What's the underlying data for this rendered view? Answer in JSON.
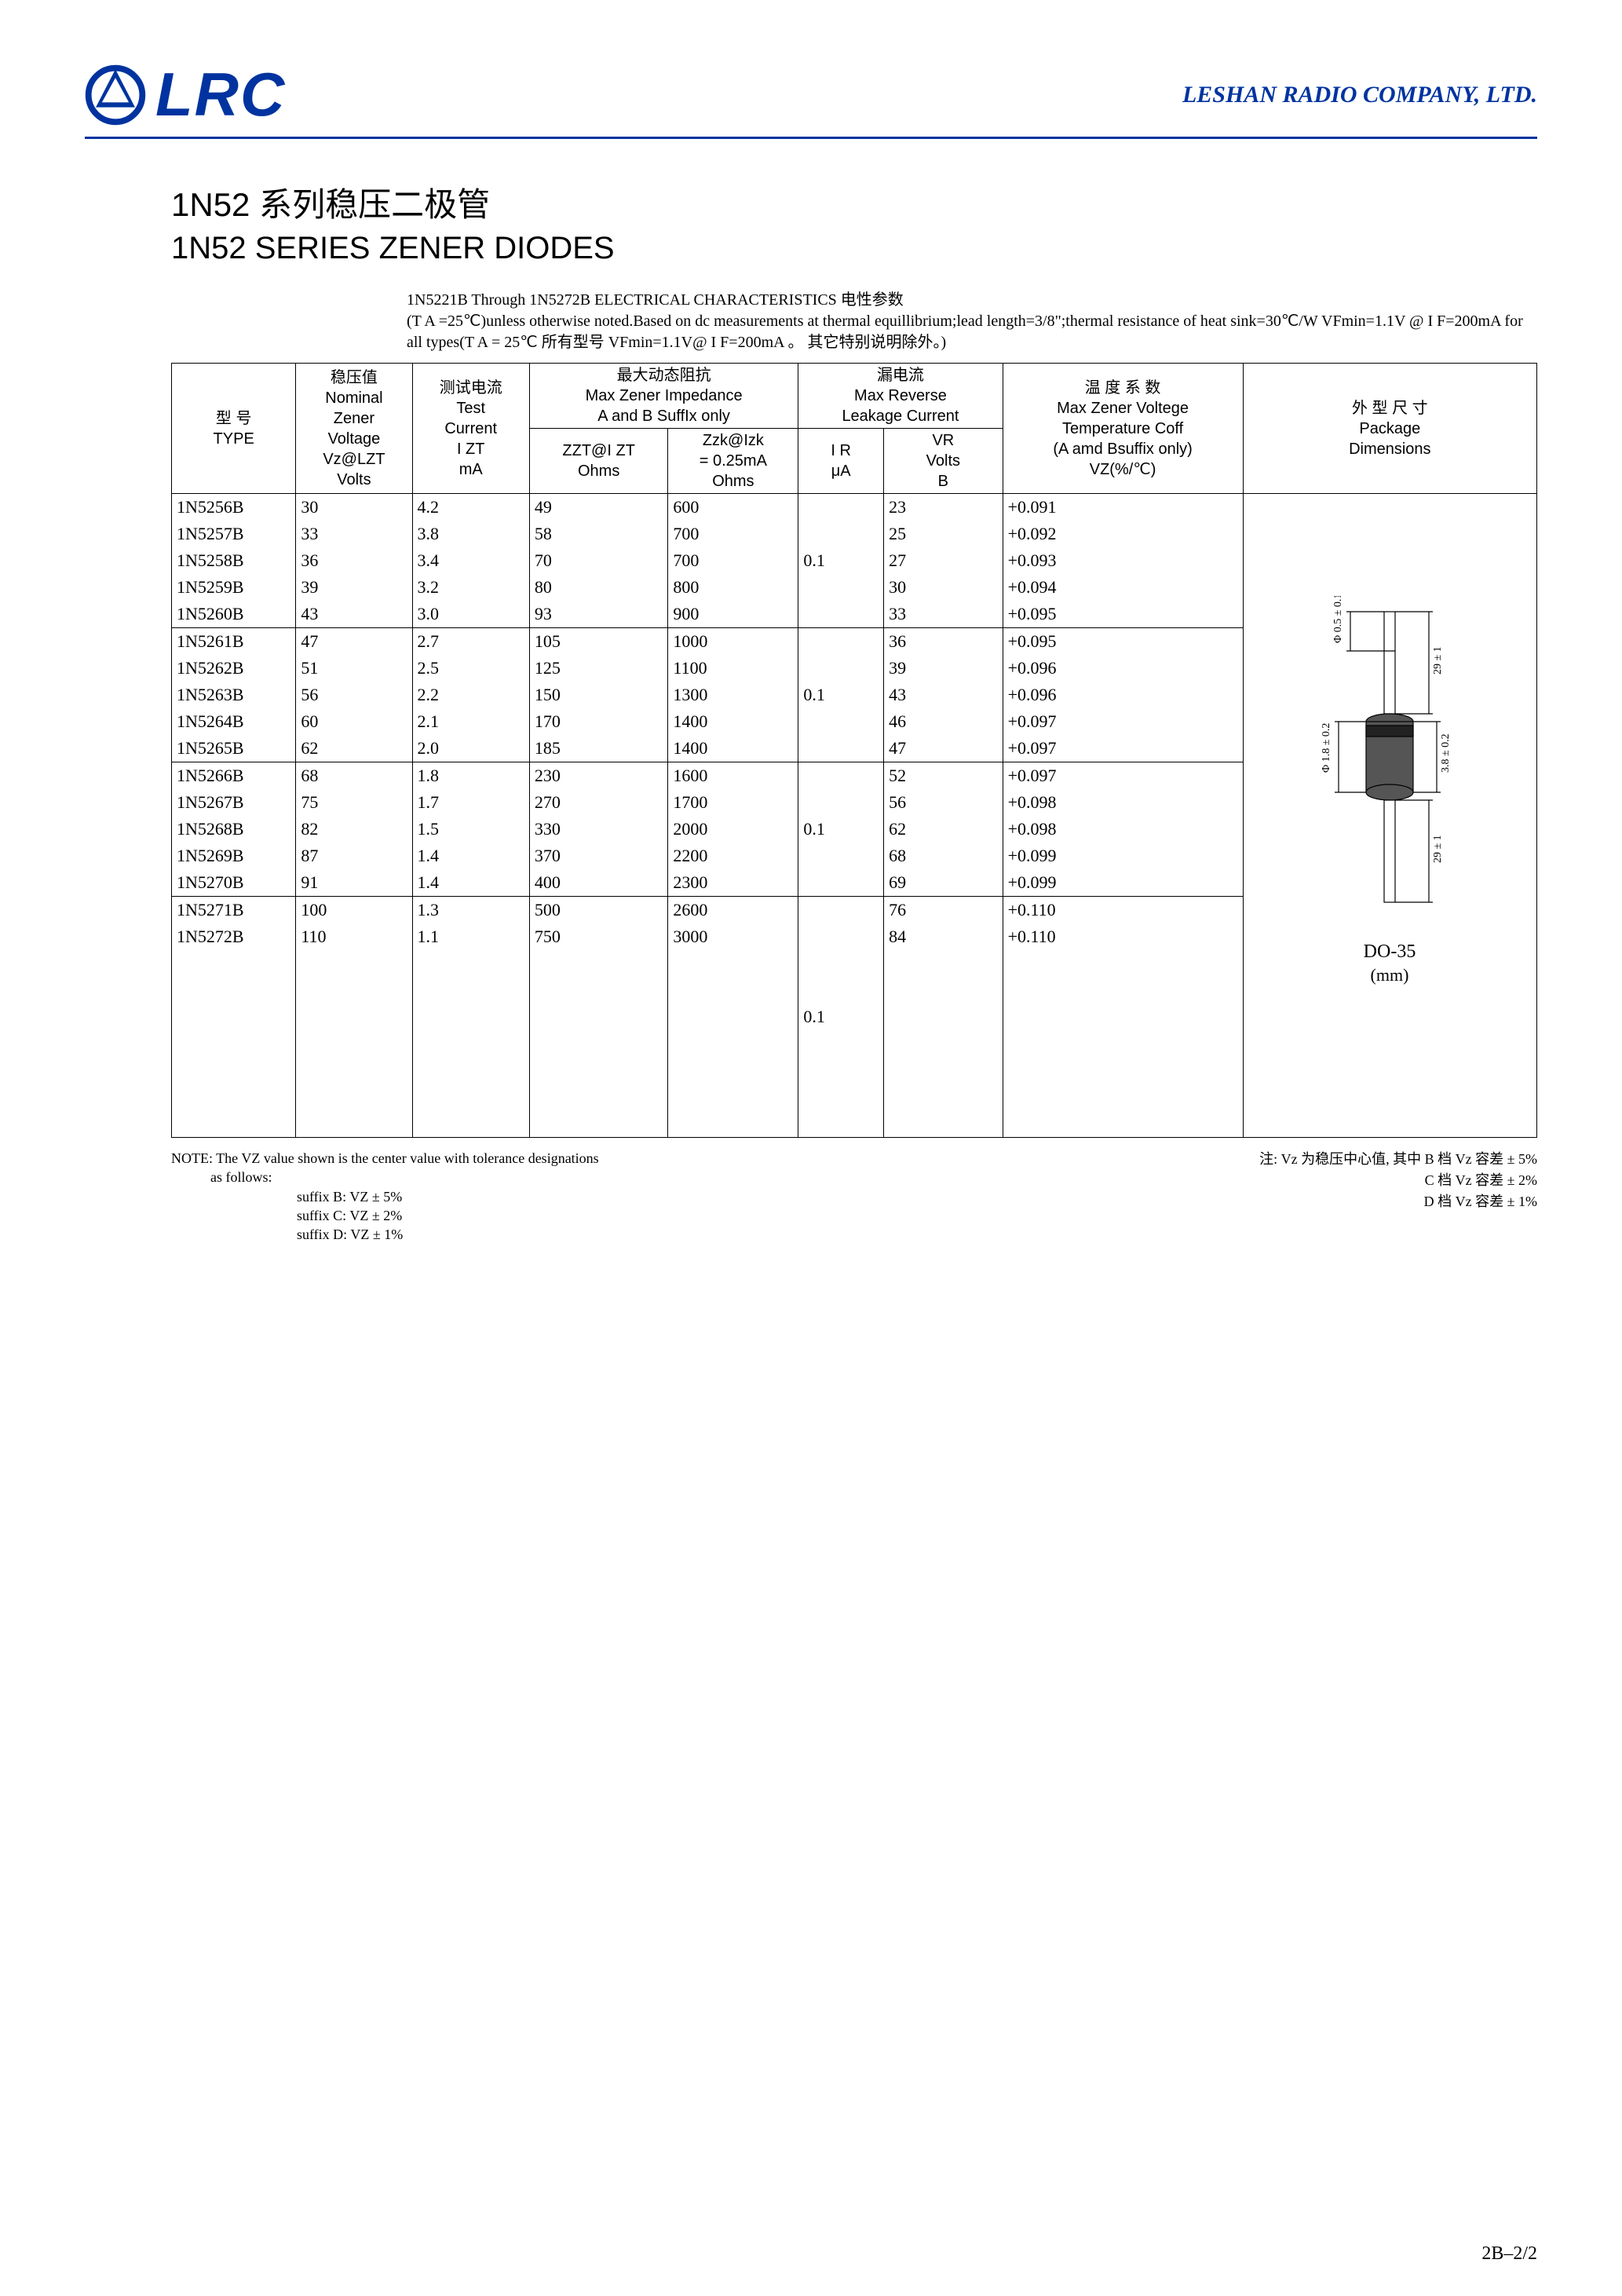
{
  "header": {
    "logo_text": "LRC",
    "company": "LESHAN RADIO COMPANY, LTD."
  },
  "titles": {
    "cn": "1N52 系列稳压二极管",
    "en": "1N52 SERIES ZENER DIODES"
  },
  "subtitle": {
    "line1": "1N5221B Through 1N5272B ELECTRICAL CHARACTERISTICS 电性参数",
    "line2": "(T A =25℃)unless otherwise noted.Based on dc measurements at thermal equillibrium;lead length=3/8\";thermal resistance of heat sink=30℃/W  VFmin=1.1V @ I F=200mA for all types(T A = 25℃ 所有型号 VFmin=1.1V@ I F=200mA 。 其它特别说明除外。)"
  },
  "table": {
    "headers": {
      "type_cn": "型   号",
      "type_en": "TYPE",
      "vz_cn": "稳压值",
      "vz_en1": "Nominal",
      "vz_en2": "Zener",
      "vz_en3": "Voltage",
      "vz_sym": "Vz@LZT",
      "vz_unit": "Volts",
      "izt_cn": "测试电流",
      "izt_en1": "Test",
      "izt_en2": "Current",
      "izt_sym": "I ZT",
      "izt_unit": "mA",
      "z_cn": "最大动态阻抗",
      "z_en1": "Max Zener Impedance",
      "z_en2": "A and B SuffIx only",
      "zzt_sym": "ZZT@I ZT",
      "zzt_unit": "Ohms",
      "zzk_sym": "Zzk@Izk",
      "zzk_eq": "= 0.25mA",
      "zzk_unit": "Ohms",
      "ir_cn": "漏电流",
      "ir_en1": "Max Reverse",
      "ir_en2": "Leakage Current",
      "ir_sym": "I R",
      "ir_unit": "μA",
      "vr_sym": "VR",
      "vr_unit1": "Volts",
      "vr_unit2": "B",
      "tc_cn": "温 度 系 数",
      "tc_en1": "Max Zener Voltege",
      "tc_en2": "Temperature Coff",
      "tc_en3": "(A amd Bsuffix only)",
      "tc_sym": "VZ(%/℃)",
      "pkg_cn": "外 型 尺 寸",
      "pkg_en1": "Package",
      "pkg_en2": "Dimensions"
    },
    "groups": [
      {
        "ir": "0.1",
        "rows": [
          {
            "type": "1N5256B",
            "vz": "30",
            "izt": "4.2",
            "zzt": "49",
            "zzk": "600",
            "vr": "23",
            "tc": "+0.091"
          },
          {
            "type": "1N5257B",
            "vz": "33",
            "izt": "3.8",
            "zzt": "58",
            "zzk": "700",
            "vr": "25",
            "tc": "+0.092"
          },
          {
            "type": "1N5258B",
            "vz": "36",
            "izt": "3.4",
            "zzt": "70",
            "zzk": "700",
            "vr": "27",
            "tc": "+0.093"
          },
          {
            "type": "1N5259B",
            "vz": "39",
            "izt": "3.2",
            "zzt": "80",
            "zzk": "800",
            "vr": "30",
            "tc": "+0.094"
          },
          {
            "type": "1N5260B",
            "vz": "43",
            "izt": "3.0",
            "zzt": "93",
            "zzk": "900",
            "vr": "33",
            "tc": "+0.095"
          }
        ]
      },
      {
        "ir": "0.1",
        "rows": [
          {
            "type": "1N5261B",
            "vz": "47",
            "izt": "2.7",
            "zzt": "105",
            "zzk": "1000",
            "vr": "36",
            "tc": "+0.095"
          },
          {
            "type": "1N5262B",
            "vz": "51",
            "izt": "2.5",
            "zzt": "125",
            "zzk": "1100",
            "vr": "39",
            "tc": "+0.096"
          },
          {
            "type": "1N5263B",
            "vz": "56",
            "izt": "2.2",
            "zzt": "150",
            "zzk": "1300",
            "vr": "43",
            "tc": "+0.096"
          },
          {
            "type": "1N5264B",
            "vz": "60",
            "izt": "2.1",
            "zzt": "170",
            "zzk": "1400",
            "vr": "46",
            "tc": "+0.097"
          },
          {
            "type": "1N5265B",
            "vz": "62",
            "izt": "2.0",
            "zzt": "185",
            "zzk": "1400",
            "vr": "47",
            "tc": "+0.097"
          }
        ]
      },
      {
        "ir": "0.1",
        "rows": [
          {
            "type": "1N5266B",
            "vz": "68",
            "izt": "1.8",
            "zzt": "230",
            "zzk": "1600",
            "vr": "52",
            "tc": "+0.097"
          },
          {
            "type": "1N5267B",
            "vz": "75",
            "izt": "1.7",
            "zzt": "270",
            "zzk": "1700",
            "vr": "56",
            "tc": "+0.098"
          },
          {
            "type": "1N5268B",
            "vz": "82",
            "izt": "1.5",
            "zzt": "330",
            "zzk": "2000",
            "vr": "62",
            "tc": "+0.098"
          },
          {
            "type": "1N5269B",
            "vz": "87",
            "izt": "1.4",
            "zzt": "370",
            "zzk": "2200",
            "vr": "68",
            "tc": "+0.099"
          },
          {
            "type": "1N5270B",
            "vz": "91",
            "izt": "1.4",
            "zzt": "400",
            "zzk": "2300",
            "vr": "69",
            "tc": "+0.099"
          }
        ]
      },
      {
        "ir": "0.1",
        "rows": [
          {
            "type": "1N5271B",
            "vz": "100",
            "izt": "1.3",
            "zzt": "500",
            "zzk": "2600",
            "vr": "76",
            "tc": "+0.110"
          },
          {
            "type": "1N5272B",
            "vz": "110",
            "izt": "1.1",
            "zzt": "750",
            "zzk": "3000",
            "vr": "84",
            "tc": "+0.110"
          }
        ]
      }
    ],
    "package": {
      "label1": "DO-35",
      "label2": "(mm)",
      "dim_lead_d": "Φ 0.5 ± 0.1",
      "dim_lead_l": "29 ± 1",
      "dim_body_d": "Φ 1.8 ± 0.2",
      "dim_body_l": "3.8 ± 0.2",
      "dim_lead_l2": "29 ± 1"
    }
  },
  "notes": {
    "left_line1": "NOTE: The VZ value shown is the center value with tolerance designations",
    "left_line2": "as  follows:",
    "left_b": "suffix B:  VZ ± 5%",
    "left_c": "suffix C:  VZ ± 2%",
    "left_d": "suffix D:  VZ ± 1%",
    "right_line1": "注:  Vz 为稳压中心值,  其中 B 档 Vz 容差 ± 5%",
    "right_line2": "C 档 Vz 容差 ± 2%",
    "right_line3": "D 档 Vz 容差 ± 1%"
  },
  "page": "2B–2/2",
  "colors": {
    "brand": "#0033a0",
    "text": "#000000",
    "bg": "#ffffff"
  }
}
